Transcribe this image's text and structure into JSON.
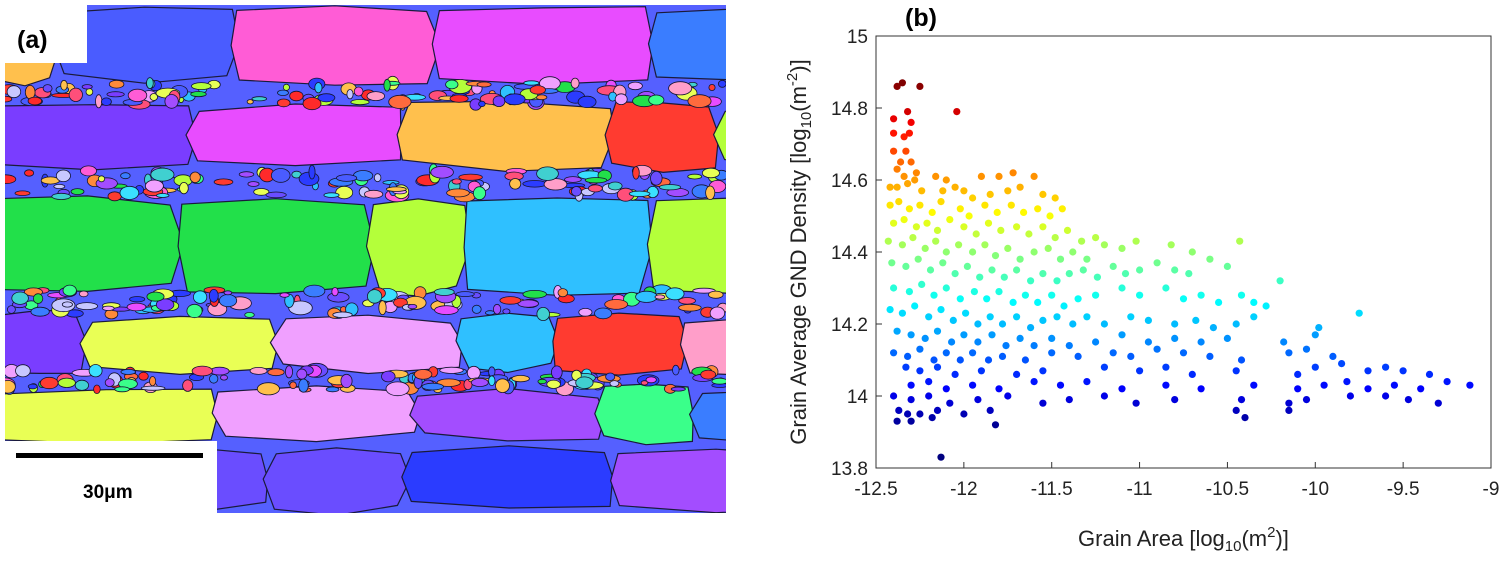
{
  "panel_a": {
    "label": "(a)",
    "scale_bar_label": "30μm"
  },
  "chart_data": {
    "type": "scatter",
    "panel_label": "(b)",
    "xlabel": "Grain Area [log10(m2)]",
    "xlabel_parts": {
      "pre": "Grain Area [log",
      "sub": "10",
      "mid": "(m",
      "sup": "2",
      "post": ")]"
    },
    "ylabel": "Grain Average GND Density [log10(m-2)]",
    "ylabel_parts": {
      "pre": "Grain Average GND Density [log",
      "sub": "10",
      "mid": "(m",
      "sup": "-2",
      "post": ")]"
    },
    "xlim": [
      -12.5,
      -9
    ],
    "ylim": [
      13.8,
      15
    ],
    "xticks": [
      -12.5,
      -12,
      -11.5,
      -11,
      -10.5,
      -10,
      -9.5,
      -9
    ],
    "xtick_labels": [
      "-12.5",
      "-12",
      "-11.5",
      "-11",
      "-10.5",
      "-10",
      "-9.5",
      "-9"
    ],
    "yticks": [
      13.8,
      14,
      14.2,
      14.4,
      14.6,
      14.8,
      15
    ],
    "ytick_labels": [
      "13.8",
      "14",
      "14.2",
      "14.4",
      "14.6",
      "14.8",
      "15"
    ],
    "colormap": "jet",
    "color_range": [
      13.9,
      14.87
    ],
    "points": [
      [
        -12.38,
        14.86
      ],
      [
        -12.35,
        14.87
      ],
      [
        -12.25,
        14.86
      ],
      [
        -12.04,
        14.79
      ],
      [
        -12.4,
        14.77
      ],
      [
        -12.32,
        14.79
      ],
      [
        -12.3,
        14.76
      ],
      [
        -12.4,
        14.73
      ],
      [
        -12.34,
        14.72
      ],
      [
        -12.31,
        14.73
      ],
      [
        -12.4,
        14.68
      ],
      [
        -12.33,
        14.68
      ],
      [
        -12.36,
        14.65
      ],
      [
        -12.3,
        14.65
      ],
      [
        -12.38,
        14.63
      ],
      [
        -12.27,
        14.62
      ],
      [
        -12.34,
        14.61
      ],
      [
        -12.16,
        14.61
      ],
      [
        -12.1,
        14.6
      ],
      [
        -11.9,
        14.61
      ],
      [
        -11.8,
        14.61
      ],
      [
        -11.72,
        14.62
      ],
      [
        -11.6,
        14.61
      ],
      [
        -12.42,
        14.58
      ],
      [
        -12.38,
        14.58
      ],
      [
        -12.32,
        14.59
      ],
      [
        -12.28,
        14.6
      ],
      [
        -12.24,
        14.57
      ],
      [
        -12.12,
        14.57
      ],
      [
        -12.05,
        14.58
      ],
      [
        -12.0,
        14.57
      ],
      [
        -11.95,
        14.55
      ],
      [
        -11.85,
        14.56
      ],
      [
        -11.75,
        14.57
      ],
      [
        -11.68,
        14.58
      ],
      [
        -11.55,
        14.56
      ],
      [
        -11.48,
        14.55
      ],
      [
        -12.42,
        14.53
      ],
      [
        -12.37,
        14.54
      ],
      [
        -12.31,
        14.52
      ],
      [
        -12.25,
        14.53
      ],
      [
        -12.18,
        14.51
      ],
      [
        -12.13,
        14.54
      ],
      [
        -12.02,
        14.52
      ],
      [
        -11.97,
        14.5
      ],
      [
        -11.88,
        14.53
      ],
      [
        -11.81,
        14.51
      ],
      [
        -11.73,
        14.53
      ],
      [
        -11.66,
        14.51
      ],
      [
        -11.58,
        14.52
      ],
      [
        -11.51,
        14.5
      ],
      [
        -11.44,
        14.52
      ],
      [
        -12.4,
        14.48
      ],
      [
        -12.34,
        14.49
      ],
      [
        -12.27,
        14.47
      ],
      [
        -12.21,
        14.48
      ],
      [
        -12.15,
        14.46
      ],
      [
        -12.08,
        14.49
      ],
      [
        -12.0,
        14.47
      ],
      [
        -11.93,
        14.45
      ],
      [
        -11.86,
        14.48
      ],
      [
        -11.79,
        14.46
      ],
      [
        -11.7,
        14.47
      ],
      [
        -11.63,
        14.45
      ],
      [
        -11.55,
        14.47
      ],
      [
        -11.48,
        14.44
      ],
      [
        -11.41,
        14.46
      ],
      [
        -11.33,
        14.43
      ],
      [
        -11.25,
        14.44
      ],
      [
        -12.43,
        14.43
      ],
      [
        -12.35,
        14.42
      ],
      [
        -12.29,
        14.44
      ],
      [
        -12.22,
        14.41
      ],
      [
        -12.16,
        14.43
      ],
      [
        -12.1,
        14.4
      ],
      [
        -12.03,
        14.42
      ],
      [
        -11.95,
        14.4
      ],
      [
        -11.88,
        14.42
      ],
      [
        -11.82,
        14.39
      ],
      [
        -11.75,
        14.41
      ],
      [
        -11.68,
        14.38
      ],
      [
        -11.6,
        14.4
      ],
      [
        -11.52,
        14.41
      ],
      [
        -11.45,
        14.38
      ],
      [
        -11.38,
        14.4
      ],
      [
        -11.3,
        14.38
      ],
      [
        -11.2,
        14.42
      ],
      [
        -11.1,
        14.41
      ],
      [
        -11.02,
        14.43
      ],
      [
        -10.82,
        14.42
      ],
      [
        -10.7,
        14.4
      ],
      [
        -10.43,
        14.43
      ],
      [
        -10.2,
        14.32
      ],
      [
        -12.41,
        14.37
      ],
      [
        -12.33,
        14.36
      ],
      [
        -12.26,
        14.38
      ],
      [
        -12.19,
        14.35
      ],
      [
        -12.12,
        14.37
      ],
      [
        -12.05,
        14.34
      ],
      [
        -11.98,
        14.36
      ],
      [
        -11.91,
        14.33
      ],
      [
        -11.84,
        14.35
      ],
      [
        -11.77,
        14.33
      ],
      [
        -11.7,
        14.35
      ],
      [
        -11.62,
        14.32
      ],
      [
        -11.55,
        14.34
      ],
      [
        -11.47,
        14.32
      ],
      [
        -11.4,
        14.34
      ],
      [
        -11.32,
        14.35
      ],
      [
        -11.24,
        14.33
      ],
      [
        -11.15,
        14.36
      ],
      [
        -11.08,
        14.34
      ],
      [
        -11.0,
        14.35
      ],
      [
        -10.9,
        14.37
      ],
      [
        -10.8,
        14.35
      ],
      [
        -10.72,
        14.34
      ],
      [
        -10.6,
        14.38
      ],
      [
        -10.5,
        14.36
      ],
      [
        -12.4,
        14.3
      ],
      [
        -12.31,
        14.29
      ],
      [
        -12.24,
        14.31
      ],
      [
        -12.17,
        14.28
      ],
      [
        -12.1,
        14.3
      ],
      [
        -12.02,
        14.27
      ],
      [
        -11.94,
        14.29
      ],
      [
        -11.87,
        14.27
      ],
      [
        -11.8,
        14.29
      ],
      [
        -11.72,
        14.26
      ],
      [
        -11.65,
        14.28
      ],
      [
        -11.58,
        14.26
      ],
      [
        -11.5,
        14.28
      ],
      [
        -11.43,
        14.25
      ],
      [
        -11.35,
        14.27
      ],
      [
        -11.25,
        14.28
      ],
      [
        -11.1,
        14.3
      ],
      [
        -11.0,
        14.28
      ],
      [
        -10.85,
        14.3
      ],
      [
        -10.75,
        14.27
      ],
      [
        -10.65,
        14.28
      ],
      [
        -10.55,
        14.26
      ],
      [
        -10.42,
        14.28
      ],
      [
        -10.35,
        14.26
      ],
      [
        -10.28,
        14.25
      ],
      [
        -12.42,
        14.24
      ],
      [
        -12.35,
        14.23
      ],
      [
        -12.28,
        14.25
      ],
      [
        -12.2,
        14.22
      ],
      [
        -12.13,
        14.24
      ],
      [
        -12.06,
        14.21
      ],
      [
        -11.99,
        14.23
      ],
      [
        -11.92,
        14.2
      ],
      [
        -11.85,
        14.22
      ],
      [
        -11.78,
        14.2
      ],
      [
        -11.7,
        14.22
      ],
      [
        -11.62,
        14.19
      ],
      [
        -11.55,
        14.21
      ],
      [
        -11.47,
        14.22
      ],
      [
        -11.38,
        14.2
      ],
      [
        -11.3,
        14.22
      ],
      [
        -11.2,
        14.2
      ],
      [
        -11.05,
        14.22
      ],
      [
        -10.95,
        14.21
      ],
      [
        -10.8,
        14.2
      ],
      [
        -10.68,
        14.21
      ],
      [
        -10.58,
        14.19
      ],
      [
        -10.45,
        14.2
      ],
      [
        -10.35,
        14.22
      ],
      [
        -9.75,
        14.23
      ],
      [
        -12.38,
        14.18
      ],
      [
        -12.3,
        14.17
      ],
      [
        -12.22,
        14.16
      ],
      [
        -12.15,
        14.18
      ],
      [
        -12.07,
        14.15
      ],
      [
        -12.0,
        14.17
      ],
      [
        -11.92,
        14.15
      ],
      [
        -11.84,
        14.17
      ],
      [
        -11.76,
        14.14
      ],
      [
        -11.68,
        14.16
      ],
      [
        -11.6,
        14.14
      ],
      [
        -11.5,
        14.16
      ],
      [
        -11.4,
        14.14
      ],
      [
        -11.25,
        14.15
      ],
      [
        -11.1,
        14.17
      ],
      [
        -10.95,
        14.15
      ],
      [
        -10.8,
        14.16
      ],
      [
        -10.65,
        14.15
      ],
      [
        -10.5,
        14.16
      ],
      [
        -10.18,
        14.15
      ],
      [
        -10.0,
        14.17
      ],
      [
        -9.98,
        14.19
      ],
      [
        -12.4,
        14.12
      ],
      [
        -12.32,
        14.11
      ],
      [
        -12.25,
        14.13
      ],
      [
        -12.17,
        14.1
      ],
      [
        -12.1,
        14.12
      ],
      [
        -12.02,
        14.1
      ],
      [
        -11.95,
        14.12
      ],
      [
        -11.86,
        14.1
      ],
      [
        -11.78,
        14.11
      ],
      [
        -11.65,
        14.1
      ],
      [
        -11.5,
        14.12
      ],
      [
        -11.35,
        14.11
      ],
      [
        -11.15,
        14.12
      ],
      [
        -11.05,
        14.11
      ],
      [
        -10.9,
        14.13
      ],
      [
        -10.75,
        14.12
      ],
      [
        -10.6,
        14.11
      ],
      [
        -10.42,
        14.1
      ],
      [
        -10.15,
        14.12
      ],
      [
        -10.05,
        14.13
      ],
      [
        -9.9,
        14.11
      ],
      [
        -12.33,
        14.08
      ],
      [
        -12.25,
        14.07
      ],
      [
        -12.15,
        14.08
      ],
      [
        -12.05,
        14.06
      ],
      [
        -11.9,
        14.07
      ],
      [
        -11.7,
        14.06
      ],
      [
        -11.55,
        14.07
      ],
      [
        -11.2,
        14.08
      ],
      [
        -11.0,
        14.07
      ],
      [
        -10.85,
        14.08
      ],
      [
        -10.7,
        14.06
      ],
      [
        -10.45,
        14.07
      ],
      [
        -10.1,
        14.06
      ],
      [
        -10.0,
        14.08
      ],
      [
        -9.85,
        14.09
      ],
      [
        -9.7,
        14.07
      ],
      [
        -9.6,
        14.08
      ],
      [
        -9.5,
        14.07
      ],
      [
        -9.35,
        14.06
      ],
      [
        -9.25,
        14.04
      ],
      [
        -12.3,
        14.03
      ],
      [
        -12.2,
        14.04
      ],
      [
        -12.1,
        14.02
      ],
      [
        -11.95,
        14.03
      ],
      [
        -11.8,
        14.02
      ],
      [
        -11.6,
        14.04
      ],
      [
        -11.45,
        14.03
      ],
      [
        -11.3,
        14.04
      ],
      [
        -11.1,
        14.02
      ],
      [
        -10.85,
        14.03
      ],
      [
        -10.65,
        14.02
      ],
      [
        -10.35,
        14.03
      ],
      [
        -10.1,
        14.02
      ],
      [
        -9.95,
        14.03
      ],
      [
        -9.82,
        14.04
      ],
      [
        -9.7,
        14.02
      ],
      [
        -9.55,
        14.03
      ],
      [
        -9.4,
        14.02
      ],
      [
        -9.12,
        14.03
      ],
      [
        -12.4,
        14.0
      ],
      [
        -12.3,
        13.99
      ],
      [
        -12.2,
        14.0
      ],
      [
        -12.08,
        13.98
      ],
      [
        -11.92,
        13.99
      ],
      [
        -11.75,
        14.0
      ],
      [
        -11.55,
        13.98
      ],
      [
        -11.4,
        13.99
      ],
      [
        -11.2,
        14.0
      ],
      [
        -11.02,
        13.98
      ],
      [
        -10.8,
        13.99
      ],
      [
        -10.42,
        13.99
      ],
      [
        -10.15,
        13.98
      ],
      [
        -10.05,
        13.99
      ],
      [
        -9.8,
        14.0
      ],
      [
        -9.6,
        14.0
      ],
      [
        -9.47,
        13.99
      ],
      [
        -9.3,
        13.98
      ],
      [
        -12.37,
        13.96
      ],
      [
        -12.32,
        13.95
      ],
      [
        -12.25,
        13.95
      ],
      [
        -12.15,
        13.96
      ],
      [
        -12.0,
        13.95
      ],
      [
        -11.85,
        13.96
      ],
      [
        -10.45,
        13.96
      ],
      [
        -10.15,
        13.96
      ],
      [
        -12.38,
        13.93
      ],
      [
        -12.3,
        13.93
      ],
      [
        -12.18,
        13.94
      ],
      [
        -11.82,
        13.92
      ],
      [
        -10.4,
        13.94
      ],
      [
        -12.13,
        13.83
      ]
    ]
  }
}
